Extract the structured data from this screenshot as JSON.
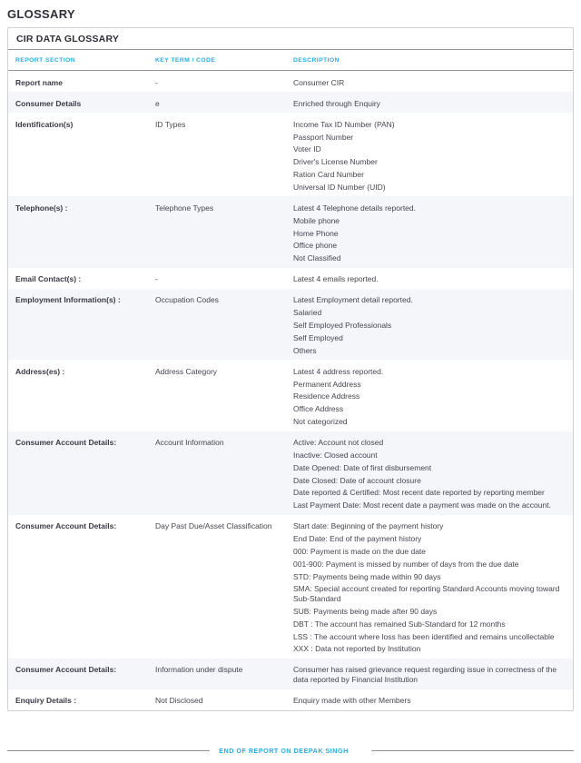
{
  "page_title": "GLOSSARY",
  "table": {
    "title": "CIR DATA GLOSSARY",
    "columns": [
      "REPORT SECTION",
      "KEY TERM / CODE",
      "DESCRIPTION"
    ],
    "rows": [
      {
        "section": "Report name",
        "key_term": "-",
        "description": [
          "Consumer CIR"
        ]
      },
      {
        "section": "Consumer Details",
        "key_term": "e",
        "description": [
          "Enriched through Enquiry"
        ]
      },
      {
        "section": "Identification(s)",
        "key_term": "ID Types",
        "description": [
          "Income Tax ID Number (PAN)",
          "Passport Number",
          "Voter ID",
          "Driver's License Number",
          "Ration Card Number",
          "Universal ID Number (UID)"
        ]
      },
      {
        "section": "Telephone(s) :",
        "key_term": "Telephone Types",
        "description": [
          "Latest 4 Telephone details reported.",
          "Mobile phone",
          "Home Phone",
          "Office phone",
          "Not Classified"
        ]
      },
      {
        "section": "Email Contact(s) :",
        "key_term": "-",
        "description": [
          "Latest 4 emails reported."
        ]
      },
      {
        "section": "Employment Information(s) :",
        "key_term": "Occupation Codes",
        "description": [
          "Latest Employment detail reported.",
          "Salaried",
          "Self Employed Professionals",
          "Self Employed",
          "Others"
        ]
      },
      {
        "section": "Address(es) :",
        "key_term": "Address Category",
        "description": [
          "Latest 4 address reported.",
          "Permanent Address",
          "Residence Address",
          "Office Address",
          "Not categorized"
        ]
      },
      {
        "section": "Consumer Account Details:",
        "key_term": "Account Information",
        "description": [
          "Active: Account not closed",
          "Inactive: Closed account",
          "Date Opened: Date of first disbursement",
          "Date Closed: Date of account closure",
          "Date reported & Certified: Most recent date reported by reporting member",
          "Last Payment Date: Most recent date a payment was made on the account."
        ]
      },
      {
        "section": "Consumer Account Details:",
        "key_term": "Day Past Due/Asset Classification",
        "description": [
          "Start date: Beginning of the payment history",
          "End Date: End of the payment history",
          "000: Payment is made on the due date",
          "001-900: Payment is missed by number of days from the due date",
          "STD: Payments being made within 90 days",
          "SMA: Special account created for reporting Standard Accounts moving toward Sub-Standard",
          "SUB: Payments being made after 90 days",
          "DBT : The account has remained Sub-Standard for 12 months",
          "LSS : The account where loss has been identified and remains uncollectable",
          "XXX : Data not reported by Institution"
        ]
      },
      {
        "section": "Consumer Account Details:",
        "key_term": "Information under dispute",
        "description": [
          "Consumer has raised grievance request regarding issue in correctness of the data reported by Financial Institution"
        ]
      },
      {
        "section": "Enquiry Details :",
        "key_term": "Not Disclosed",
        "description": [
          "Enquiry made with other Members"
        ]
      }
    ]
  },
  "footer": {
    "end_text": "END OF REPORT ON DEEPAK SINGH"
  },
  "colors": {
    "accent_cyan": "#29abe2",
    "heading_dark": "#2e2e39",
    "body_text": "#45454f",
    "alt_row_bg": "#f4f6fa",
    "table_border": "#cfd1d6",
    "heavy_rule": "#97979b"
  }
}
